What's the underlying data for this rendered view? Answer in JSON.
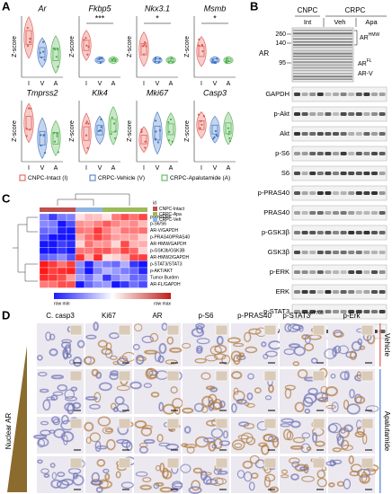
{
  "panel_labels": [
    "A",
    "B",
    "C",
    "D"
  ],
  "a": {
    "genes": [
      {
        "name": "Ar"
      },
      {
        "name": "Fkbp5",
        "sig": "***"
      },
      {
        "name": "Nkx3.1",
        "sig": "*"
      },
      {
        "name": "Msmb",
        "sig": "*"
      },
      {
        "name": "Tmprss2"
      },
      {
        "name": "Klk4"
      },
      {
        "name": "Mki67"
      },
      {
        "name": "Casp3"
      }
    ],
    "ylabel": "Z-score",
    "groups": [
      "I",
      "V",
      "A"
    ],
    "legend": [
      "CNPC-Intact (I)",
      "CRPC-Vehicle (V)",
      "CRPC-Apalutamide (A)"
    ]
  },
  "b": {
    "groups": [
      "CNPC",
      "CRPC"
    ],
    "subgroups": [
      "Int",
      "Veh",
      "Apa"
    ],
    "ar": "AR",
    "markers": [
      260,
      140,
      95
    ],
    "ar_forms": [
      "AR",
      "AR",
      "AR-V"
    ],
    "ar_sups": [
      "HMW",
      "FL"
    ],
    "blots": [
      "GAPDH",
      "p-Akt",
      "Akt",
      "p-S6",
      "S6",
      "p-PRAS40",
      "PRAS40",
      "p-GSK3β",
      "GSK3β",
      "p-ERK",
      "ERK",
      "p-STAT3",
      "STAT3"
    ]
  },
  "c": {
    "rows": [
      "p-Erk/ERK",
      "p-S6/S6",
      "AR-V/GAPDH",
      "p-PRAS40/PRAS40",
      "AR-HMW/GAPDH",
      "p-GSK3b/GSK3B",
      "AR-HMW2/GAPDH",
      "p-STAT3/STAT3",
      "p-AKT/AKT",
      "Tumor Burden",
      "AR-FL/GAPDH"
    ],
    "legend_title": "id",
    "legend": [
      "CNPC-Intact",
      "CRPC-Apa",
      "CRPC-Veh"
    ],
    "scale": [
      "row min",
      "row max"
    ]
  },
  "d": {
    "columns": [
      "C. casp3",
      "Ki67",
      "AR",
      "p-S6",
      "p-PRAS40",
      "p-STAT3",
      "p-Erk"
    ],
    "stat3_sup": "pY705",
    "conditions": [
      "Vehicle",
      "Apalutamide"
    ],
    "side": "Nuclear AR"
  }
}
